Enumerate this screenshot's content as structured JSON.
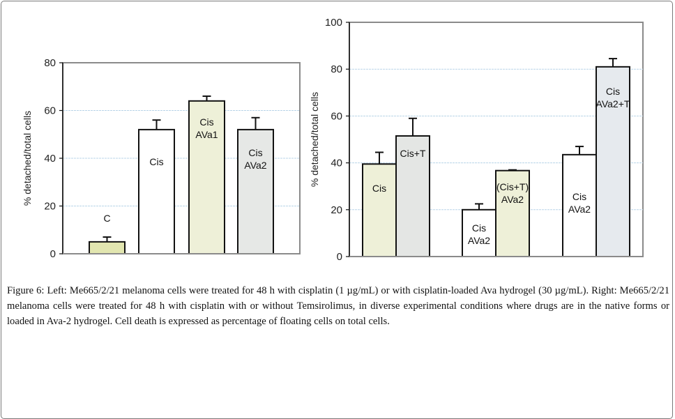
{
  "chart_data": [
    {
      "type": "bar",
      "panel": "left",
      "title": "",
      "xlabel": "",
      "ylabel": "% detached/total cells",
      "ylim": [
        0,
        80
      ],
      "yticks": [
        0,
        20,
        40,
        60,
        80
      ],
      "grid": true,
      "categories": [
        "C",
        "Cis",
        "Cis AVa1",
        "Cis AVa2"
      ],
      "bar_labels": [
        [
          "C"
        ],
        [
          "Cis"
        ],
        [
          "Cis",
          "AVa1"
        ],
        [
          "Cis",
          "AVa2"
        ]
      ],
      "values": [
        5,
        52,
        64,
        52
      ],
      "error_upper": [
        7,
        56,
        66,
        57
      ],
      "colors": [
        "#e2e6b0",
        "#ffffff",
        "#eef0d8",
        "#e6e8e6"
      ]
    },
    {
      "type": "bar",
      "panel": "right",
      "title": "",
      "xlabel": "",
      "ylabel": "% detached/total cells",
      "ylim": [
        0,
        100
      ],
      "yticks": [
        0,
        20,
        40,
        60,
        80,
        100
      ],
      "grid": true,
      "groups": [
        {
          "bars": [
            {
              "label": [
                "Cis"
              ],
              "value": 39.5,
              "error_upper": 44.5,
              "color": "#eef0d8"
            },
            {
              "label": [
                "Cis+T"
              ],
              "value": 51.5,
              "error_upper": 59,
              "color": "#e4e6e4"
            }
          ]
        },
        {
          "bars": [
            {
              "label": [
                "Cis",
                "AVa2"
              ],
              "value": 20,
              "error_upper": 22.5,
              "color": "#ffffff"
            },
            {
              "label": [
                "(Cis+T)",
                "AVa2"
              ],
              "value": 36.7,
              "error_upper": 37,
              "color": "#eef0d8"
            }
          ]
        },
        {
          "bars": [
            {
              "label": [
                "Cis",
                "AVa2"
              ],
              "value": 43.5,
              "error_upper": 47,
              "color": "#ffffff"
            },
            {
              "label": [
                "Cis",
                "AVa2+T"
              ],
              "value": 81,
              "error_upper": 84.5,
              "color": "#e6eaee"
            }
          ]
        }
      ]
    }
  ],
  "caption": {
    "label": "Figure 6:",
    "text": " Left: Me665/2/21 melanoma cells were treated for 48 h with cisplatin (1 µg/mL) or with cisplatin-loaded Ava hydrogel (30 µg/mL). Right: Me665/2/21 melanoma cells were treated for 48 h with cisplatin with or without Temsirolimus, in diverse experimental conditions where drugs are in the native forms or loaded in Ava-2 hydrogel. Cell death is expressed as percentage of floating cells on total cells."
  }
}
